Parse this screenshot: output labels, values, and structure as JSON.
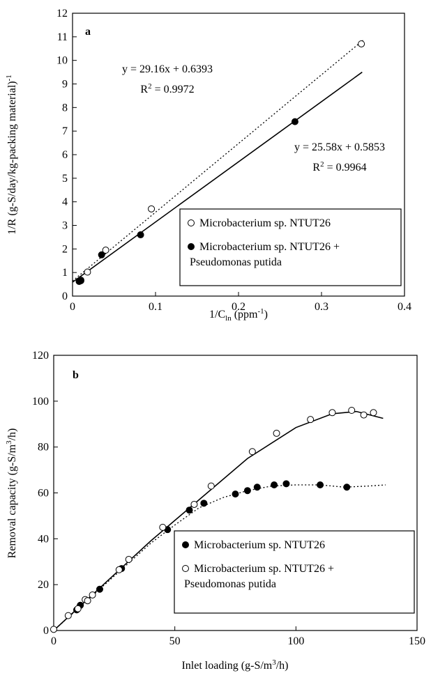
{
  "chart_data": [
    {
      "type": "scatter",
      "panel_label": "a",
      "xlabel": [
        "1/C",
        "ln",
        " (ppm",
        "-1",
        ")"
      ],
      "ylabel": [
        "1/R (g-S/day/kg-packing material)",
        "-1"
      ],
      "xlim": [
        0,
        0.4
      ],
      "xticks": [
        0,
        0.1,
        0.2,
        0.3,
        0.4
      ],
      "ylim": [
        0,
        12
      ],
      "yticks": [
        0,
        1,
        2,
        3,
        4,
        5,
        6,
        7,
        8,
        9,
        10,
        11,
        12
      ],
      "annotations": [
        [
          "y = 29.16x + 0.6393"
        ],
        [
          "R",
          "2",
          " = 0.9972"
        ],
        [
          "y = 25.58x + 0.5853"
        ],
        [
          "R",
          "2",
          " = 0.9964"
        ]
      ],
      "series": [
        {
          "name": [
            "Microbacterium sp. NTUT26"
          ],
          "color": "#000000",
          "fill": "none",
          "line_style": "dotted",
          "x": [
            0.01,
            0.018,
            0.04,
            0.095,
            0.348
          ],
          "values": [
            0.68,
            1.02,
            1.95,
            3.7,
            10.7
          ],
          "fit": {
            "x": [
              0,
              0.35
            ],
            "values": [
              0.64,
              10.85
            ]
          }
        },
        {
          "name": [
            "Microbacterium sp. NTUT26 +",
            "Pseudomonas putida"
          ],
          "color": "#000000",
          "fill": "#000000",
          "line_style": "solid",
          "x": [
            0.008,
            0.01,
            0.035,
            0.082,
            0.268
          ],
          "values": [
            0.62,
            0.65,
            1.75,
            2.6,
            7.4
          ],
          "fit": {
            "x": [
              0,
              0.349
            ],
            "values": [
              0.59,
              9.5
            ]
          }
        }
      ]
    },
    {
      "type": "scatter",
      "panel_label": "b",
      "xlabel": [
        "Inlet loading (g-S/m",
        "3",
        "/h)"
      ],
      "ylabel": [
        "Removal capacity (g-S/m",
        "3",
        "/h)"
      ],
      "xlim": [
        0,
        150
      ],
      "xticks": [
        0,
        50,
        100,
        150
      ],
      "ylim": [
        0,
        120
      ],
      "yticks": [
        0,
        20,
        40,
        60,
        80,
        100,
        120
      ],
      "annotations": [],
      "series": [
        {
          "name": [
            "Microbacterium sp. NTUT26"
          ],
          "color": "#000000",
          "fill": "#000000",
          "line_style": "dotted",
          "x": [
            9.5,
            11,
            19,
            28,
            47,
            56,
            62,
            75,
            80,
            84,
            91,
            96,
            110,
            121
          ],
          "values": [
            9,
            11,
            18,
            27,
            44,
            52.5,
            55.5,
            59.5,
            61,
            62.5,
            63.5,
            64,
            63.5,
            62.5
          ],
          "fit": {
            "x": [
              0,
              20,
              40,
              50,
              60,
              70,
              80,
              90,
              100,
              110,
              120,
              130,
              137
            ],
            "values": [
              0,
              19,
              38,
              46,
              53.5,
              58,
              61,
              63,
              63.5,
              63.5,
              62.5,
              63,
              63.5
            ]
          }
        },
        {
          "name": [
            "Microbacterium sp. NTUT26 +",
            "Pseudomonas putida"
          ],
          "color": "#000000",
          "fill": "none",
          "line_style": "solid",
          "x": [
            0,
            6,
            10,
            13,
            14,
            16,
            27,
            31,
            45,
            58,
            65,
            82,
            92,
            106,
            115,
            123,
            128,
            132
          ],
          "values": [
            0.5,
            6.5,
            9.5,
            13.5,
            13,
            15.5,
            26.5,
            31,
            45,
            55,
            63,
            78,
            86,
            92,
            95,
            96,
            94,
            95
          ],
          "fit": {
            "x": [
              0,
              20,
              40,
              60,
              80,
              100,
              115,
              125,
              136
            ],
            "values": [
              0,
              19.5,
              39,
              57,
              75,
              88.5,
              94.5,
              95.5,
              92.5
            ]
          }
        }
      ]
    }
  ]
}
